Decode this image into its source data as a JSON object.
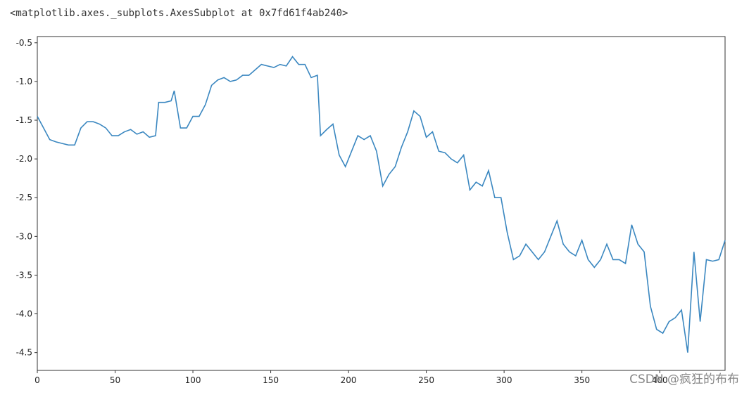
{
  "header": "<matplotlib.axes._subplots.AxesSubplot at 0x7fd61f4ab240>",
  "watermark": "CSDN @疯狂的布布",
  "chart_data": {
    "type": "line",
    "x": [
      0,
      4,
      8,
      12,
      16,
      20,
      24,
      28,
      32,
      36,
      40,
      44,
      48,
      52,
      56,
      60,
      64,
      68,
      72,
      76,
      78,
      82,
      86,
      88,
      92,
      96,
      100,
      104,
      108,
      112,
      116,
      120,
      124,
      128,
      132,
      136,
      140,
      144,
      148,
      152,
      156,
      160,
      164,
      168,
      172,
      176,
      180,
      182,
      186,
      190,
      194,
      198,
      202,
      206,
      210,
      214,
      218,
      222,
      226,
      230,
      234,
      238,
      242,
      246,
      250,
      254,
      258,
      262,
      266,
      270,
      274,
      278,
      282,
      286,
      290,
      294,
      298,
      302,
      306,
      310,
      314,
      318,
      322,
      326,
      330,
      334,
      338,
      342,
      346,
      350,
      354,
      358,
      362,
      366,
      370,
      374,
      378,
      382,
      386,
      390,
      394,
      398,
      402,
      406,
      410,
      414,
      418,
      422,
      426,
      430,
      434,
      438,
      442
    ],
    "series": [
      {
        "color": "#3a87c0",
        "values": [
          -1.45,
          -1.6,
          -1.75,
          -1.78,
          -1.8,
          -1.82,
          -1.82,
          -1.6,
          -1.52,
          -1.52,
          -1.55,
          -1.6,
          -1.7,
          -1.7,
          -1.65,
          -1.62,
          -1.68,
          -1.65,
          -1.72,
          -1.7,
          -1.27,
          -1.27,
          -1.25,
          -1.12,
          -1.6,
          -1.6,
          -1.45,
          -1.45,
          -1.3,
          -1.05,
          -0.98,
          -0.95,
          -1.0,
          -0.98,
          -0.92,
          -0.92,
          -0.85,
          -0.78,
          -0.8,
          -0.82,
          -0.78,
          -0.8,
          -0.68,
          -0.78,
          -0.78,
          -0.95,
          -0.92,
          -1.7,
          -1.62,
          -1.55,
          -1.95,
          -2.1,
          -1.9,
          -1.7,
          -1.75,
          -1.7,
          -1.9,
          -2.35,
          -2.2,
          -2.1,
          -1.85,
          -1.65,
          -1.38,
          -1.45,
          -1.72,
          -1.65,
          -1.9,
          -1.92,
          -2.0,
          -2.05,
          -1.95,
          -2.4,
          -2.3,
          -2.35,
          -2.15,
          -2.5,
          -2.5,
          -2.95,
          -3.3,
          -3.25,
          -3.1,
          -3.2,
          -3.3,
          -3.2,
          -3.0,
          -2.8,
          -3.1,
          -3.2,
          -3.25,
          -3.05,
          -3.3,
          -3.4,
          -3.3,
          -3.1,
          -3.3,
          -3.3,
          -3.35,
          -2.85,
          -3.1,
          -3.2,
          -3.9,
          -4.2,
          -4.25,
          -4.1,
          -4.05,
          -3.95,
          -4.5,
          -3.2,
          -4.1,
          -3.3,
          -3.32,
          -3.3,
          -3.05
        ]
      }
    ],
    "xlim": [
      0,
      442
    ],
    "xticks": [
      0,
      50,
      100,
      150,
      200,
      250,
      300,
      350,
      400
    ],
    "ylim": [
      -4.73,
      -0.42
    ],
    "yticks": [
      -0.5,
      {
        "value": -1,
        "label": "-1.0"
      },
      -1.5,
      {
        "value": -2,
        "label": "-2.0"
      },
      -2.5,
      {
        "value": -3,
        "label": "-3.0"
      },
      -3.5,
      {
        "value": -4,
        "label": "-4.0"
      },
      -4.5
    ],
    "grid": false
  }
}
